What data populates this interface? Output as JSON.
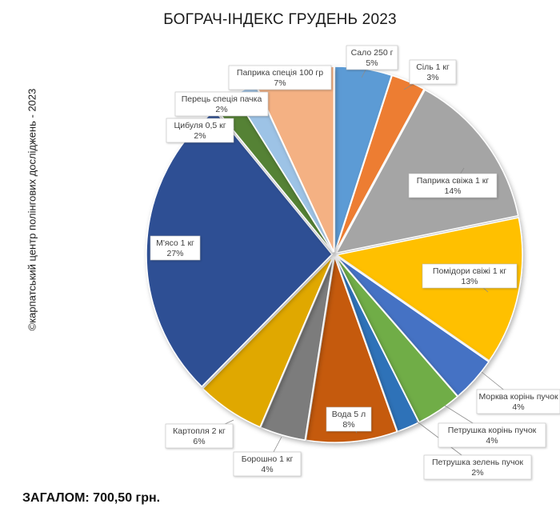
{
  "title": "БОГРАЧ-ІНДЕКС ГРУДЕНЬ 2023",
  "side_note": "©карпатський центр полінгових досліджень - 2023",
  "total": "ЗАГАЛОМ: 700,50 грн.",
  "chart_data": {
    "type": "pie",
    "title": "БОГРАЧ-ІНДЕКС ГРУДЕНЬ 2023",
    "unit": "%",
    "slices": [
      {
        "label": "Сало 250 г",
        "value": 5,
        "value_label": "5%",
        "color": "#5b9bd5"
      },
      {
        "label": "Сіль 1 кг",
        "value": 3,
        "value_label": "3%",
        "color": "#ed7d31"
      },
      {
        "label": "Паприка свіжа 1 кг",
        "value": 14,
        "value_label": "14%",
        "color": "#a5a5a5"
      },
      {
        "label": "Помідори свіжі 1 кг",
        "value": 13,
        "value_label": "13%",
        "color": "#ffc000"
      },
      {
        "label": "Морква корінь пучок",
        "value": 4,
        "value_label": "4%",
        "color": "#4472c4"
      },
      {
        "label": "Петрушка корінь пучок",
        "value": 4,
        "value_label": "4%",
        "color": "#70ad47"
      },
      {
        "label": "Петрушка зелень пучок",
        "value": 2,
        "value_label": "2%",
        "color": "#2f72b8"
      },
      {
        "label": "Вода 5 л",
        "value": 8,
        "value_label": "8%",
        "color": "#c55a11"
      },
      {
        "label": "Борошно 1 кг",
        "value": 4,
        "value_label": "4%",
        "color": "#7b7b7b"
      },
      {
        "label": "Картопля 2 кг",
        "value": 6,
        "value_label": "6%",
        "color": "#e0a800"
      },
      {
        "label": "М'ясо 1 кг",
        "value": 27,
        "value_label": "27%",
        "color": "#2f4f94"
      },
      {
        "label": "Цибуля 0,5 кг",
        "value": 2,
        "value_label": "2%",
        "color": "#548235"
      },
      {
        "label": "Перець спеція пачка",
        "value": 2,
        "value_label": "2%",
        "color": "#9dc3e6"
      },
      {
        "label": "Паприка спеція 100 гр",
        "value": 7,
        "value_label": "7%",
        "color": "#f4b183"
      }
    ]
  }
}
